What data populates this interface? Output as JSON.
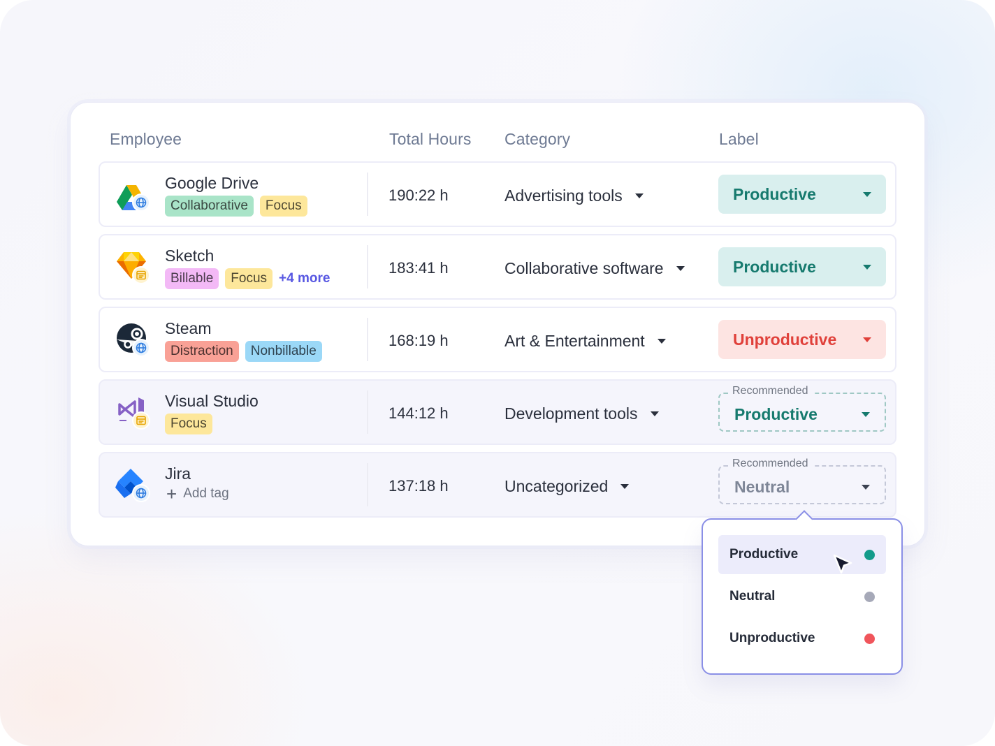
{
  "columns": {
    "employee": "Employee",
    "total_hours": "Total Hours",
    "category": "Category",
    "label": "Label"
  },
  "rows": [
    {
      "app": "Google Drive",
      "icon": "google-drive-icon",
      "badge_icon": "globe-icon",
      "tags": [
        "Collaborative",
        "Focus"
      ],
      "hours": "190:22 h",
      "category": "Advertising tools",
      "label": "Productive"
    },
    {
      "app": "Sketch",
      "icon": "sketch-icon",
      "badge_icon": "app-window-icon",
      "tags": [
        "Billable",
        "Focus"
      ],
      "more": "+4 more",
      "hours": "183:41 h",
      "category": "Collaborative software",
      "label": "Productive"
    },
    {
      "app": "Steam",
      "icon": "steam-icon",
      "badge_icon": "globe-icon",
      "tags": [
        "Distraction",
        "Nonbillable"
      ],
      "hours": "168:19 h",
      "category": "Art & Entertainment",
      "label": "Unproductive"
    },
    {
      "app": "Visual Studio",
      "icon": "visual-studio-icon",
      "badge_icon": "app-window-icon",
      "tags": [
        "Focus"
      ],
      "hours": "144:12 h",
      "category": "Development tools",
      "label_caption": "Recommended",
      "label": "Productive"
    },
    {
      "app": "Jira",
      "icon": "jira-icon",
      "badge_icon": "globe-icon",
      "add_tag": "Add tag",
      "hours": "137:18 h",
      "category": "Uncategorized",
      "label_caption": "Recommended",
      "label": "Neutral"
    }
  ],
  "dropdown": {
    "options": [
      {
        "label": "Productive",
        "color": "#139b8a"
      },
      {
        "label": "Neutral",
        "color": "#a6a9b8"
      },
      {
        "label": "Unproductive",
        "color": "#f0555b"
      }
    ]
  },
  "colors": {
    "productive": "#167a6e",
    "unproductive": "#e0403a",
    "neutral": "#7e8697",
    "accent": "#5757e2"
  }
}
